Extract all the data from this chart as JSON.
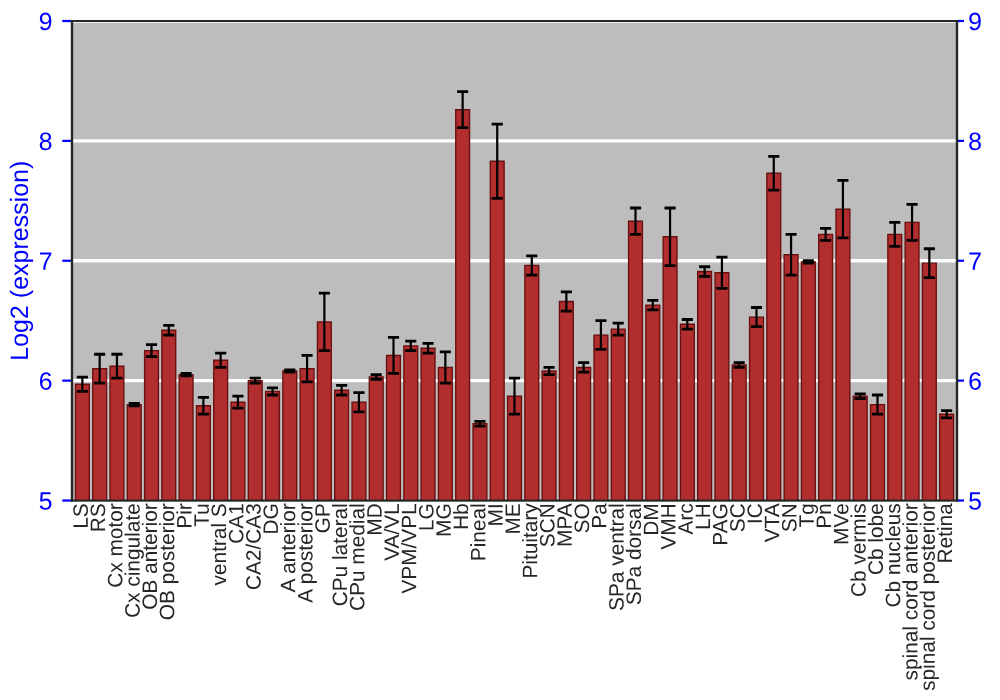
{
  "chart_data": {
    "type": "bar",
    "ylabel": "Log2 (expression)",
    "categories": [
      "LS",
      "RS",
      "Cx motor",
      "Cx cingulate",
      "OB anterior",
      "OB posterior",
      "Pir",
      "Tu",
      "ventral S",
      "CA1",
      "CA2/CA3",
      "DG",
      "A anterior",
      "A posterior",
      "GP",
      "CPu lateral",
      "CPu medial",
      "MD",
      "VA/VL",
      "VPM/VPL",
      "LG",
      "MG",
      "Hb",
      "Pineal",
      "MI",
      "ME",
      "Pituitary",
      "SCN",
      "MPA",
      "SO",
      "Pa",
      "SPa ventral",
      "SPa dorsal",
      "DM",
      "VMH",
      "Arc",
      "LH",
      "PAG",
      "SC",
      "IC",
      "VTA",
      "SN",
      "Tg",
      "Pn",
      "MVe",
      "Cb vermis",
      "Cb lobe",
      "Cb nucleus",
      "spinal cord anterior",
      "spinal cord posterior",
      "Retina"
    ],
    "values": [
      5.97,
      6.1,
      6.12,
      5.8,
      6.25,
      6.42,
      6.05,
      5.79,
      6.17,
      5.82,
      6.0,
      5.91,
      6.08,
      6.1,
      6.49,
      5.92,
      5.82,
      6.03,
      6.21,
      6.29,
      6.27,
      6.11,
      8.26,
      5.64,
      7.83,
      5.87,
      6.96,
      6.08,
      6.66,
      6.11,
      6.38,
      6.43,
      7.33,
      6.63,
      7.2,
      6.47,
      6.91,
      6.9,
      6.13,
      6.53,
      7.73,
      7.05,
      6.99,
      7.22,
      7.43,
      5.87,
      5.8,
      7.22,
      7.32,
      6.98,
      5.72
    ],
    "errors": [
      0.06,
      0.12,
      0.1,
      0.01,
      0.05,
      0.04,
      0.01,
      0.07,
      0.06,
      0.05,
      0.02,
      0.03,
      0.01,
      0.11,
      0.24,
      0.04,
      0.08,
      0.02,
      0.15,
      0.04,
      0.04,
      0.13,
      0.15,
      0.02,
      0.31,
      0.15,
      0.08,
      0.03,
      0.08,
      0.04,
      0.12,
      0.05,
      0.11,
      0.04,
      0.24,
      0.04,
      0.04,
      0.13,
      0.02,
      0.08,
      0.14,
      0.17,
      0.01,
      0.05,
      0.24,
      0.02,
      0.08,
      0.1,
      0.15,
      0.12,
      0.03
    ],
    "color": "#b22e2e",
    "ylim": [
      5,
      9
    ],
    "yticks": [
      5,
      6,
      7,
      8,
      9
    ],
    "y2lim": [
      5,
      9
    ],
    "y2ticks": [
      5,
      6,
      7,
      8,
      9
    ],
    "grid": "y"
  }
}
